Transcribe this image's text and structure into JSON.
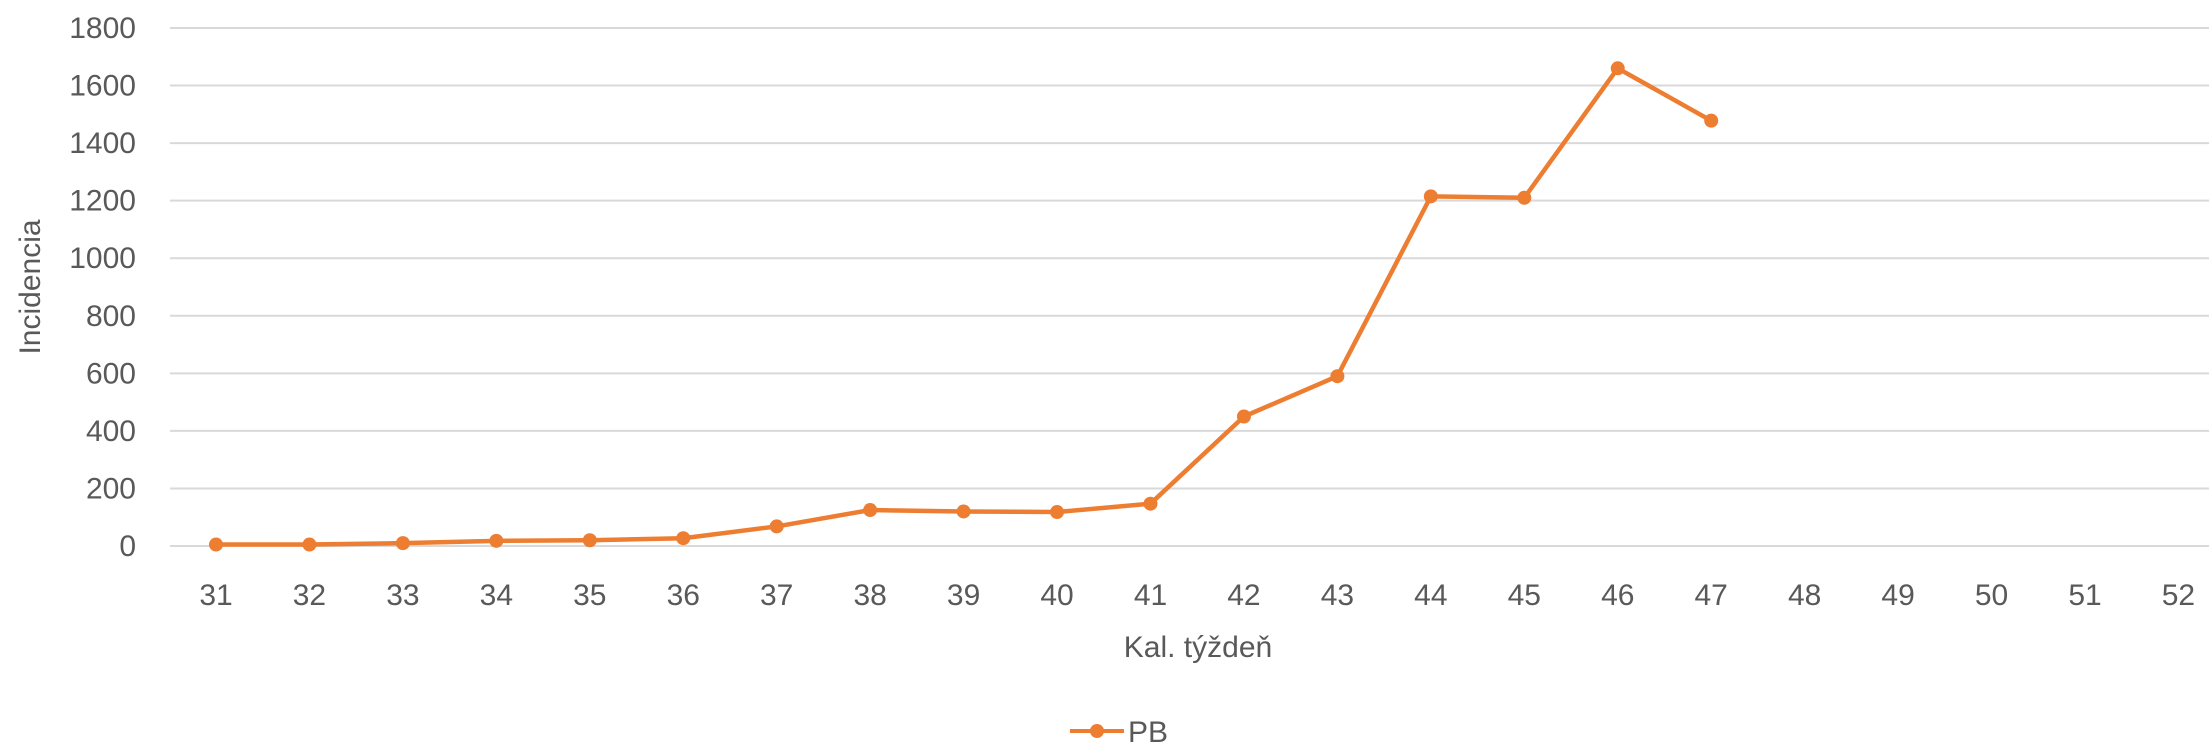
{
  "chart_data": {
    "type": "line",
    "title": "",
    "xlabel": "Kal. týždeň",
    "ylabel": "Incidencia",
    "categories": [
      "31",
      "32",
      "33",
      "34",
      "35",
      "36",
      "37",
      "38",
      "39",
      "40",
      "41",
      "42",
      "43",
      "44",
      "45",
      "46",
      "47",
      "48",
      "49",
      "50",
      "51",
      "52"
    ],
    "y_ticks": [
      "0",
      "200",
      "400",
      "600",
      "800",
      "1000",
      "1200",
      "1400",
      "1600",
      "1800"
    ],
    "ylim": [
      0,
      1800
    ],
    "grid": true,
    "legend": "bottom",
    "series": [
      {
        "name": "PB",
        "color": "#ED7D31",
        "values": [
          5,
          5,
          10,
          18,
          20,
          27,
          68,
          125,
          120,
          118,
          147,
          450,
          590,
          1215,
          1210,
          1660,
          1478,
          null,
          null,
          null,
          null,
          null
        ]
      }
    ]
  }
}
